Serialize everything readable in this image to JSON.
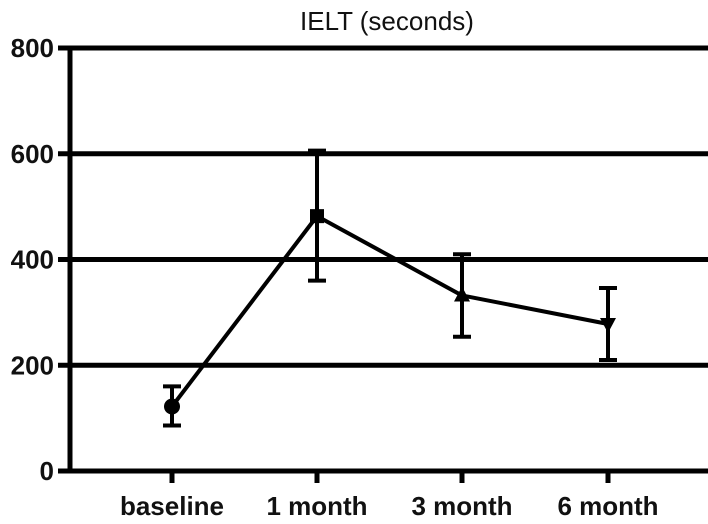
{
  "chart_data": {
    "type": "line",
    "title": "IELT (seconds)",
    "xlabel": "",
    "ylabel": "",
    "categories": [
      "baseline",
      "1 month",
      "3 month",
      "6 month"
    ],
    "markers": [
      "circle",
      "square",
      "triangle-up",
      "triangle-down"
    ],
    "series": [
      {
        "values": [
          122,
          482,
          332,
          278
        ],
        "error_low": [
          86,
          360,
          254,
          210
        ],
        "error_high": [
          160,
          606,
          410,
          346
        ]
      }
    ],
    "ylim": [
      0,
      800
    ],
    "yticks": [
      0,
      200,
      400,
      600,
      800
    ],
    "grid": true,
    "color": "#000000"
  }
}
